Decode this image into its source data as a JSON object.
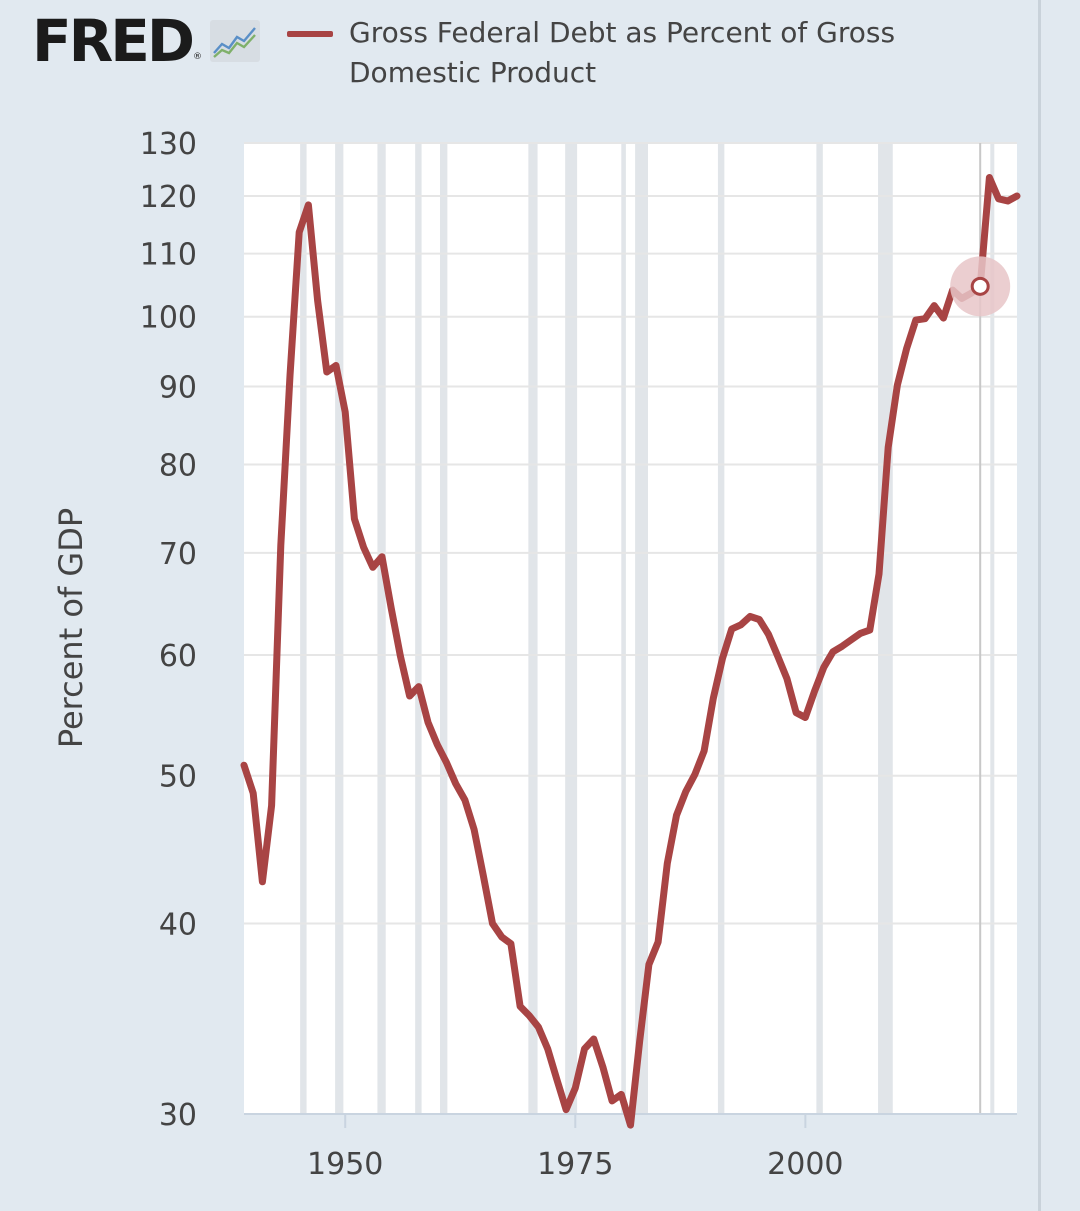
{
  "header": {
    "logo_text": "FRED",
    "logo_mark": "®",
    "logo_icon": "line-chart-icon"
  },
  "colors": {
    "series": "#a84444",
    "background": "#e1e9f0",
    "plot_background": "#ffffff",
    "recession_band": "#e1e5e9",
    "gridline": "#e6e6e6",
    "axis": "#c9d4e0",
    "highlight_halo": "#e8c5c8"
  },
  "chart_data": {
    "type": "line",
    "title": "",
    "xlabel": "",
    "ylabel": "Percent of GDP",
    "yscale": "log",
    "ylim": [
      30,
      130
    ],
    "xlim": [
      1939,
      2023
    ],
    "grid": true,
    "legend": "top",
    "yticks": [
      30,
      40,
      50,
      60,
      70,
      80,
      90,
      100,
      110,
      120,
      130
    ],
    "xticks": [
      1950,
      1975,
      2000
    ],
    "series": [
      {
        "name": "Gross Federal Debt as Percent of Gross Domestic Product",
        "x": [
          1939,
          1940,
          1941,
          1942,
          1943,
          1944,
          1945,
          1946,
          1947,
          1948,
          1949,
          1950,
          1951,
          1952,
          1953,
          1954,
          1955,
          1956,
          1957,
          1958,
          1959,
          1960,
          1961,
          1962,
          1963,
          1964,
          1965,
          1966,
          1967,
          1968,
          1969,
          1970,
          1971,
          1972,
          1973,
          1974,
          1975,
          1976,
          1977,
          1978,
          1979,
          1980,
          1981,
          1982,
          1983,
          1984,
          1985,
          1986,
          1987,
          1988,
          1989,
          1990,
          1991,
          1992,
          1993,
          1994,
          1995,
          1996,
          1997,
          1998,
          1999,
          2000,
          2001,
          2002,
          2003,
          2004,
          2005,
          2006,
          2007,
          2008,
          2009,
          2010,
          2011,
          2012,
          2013,
          2014,
          2015,
          2016,
          2017,
          2018,
          2019,
          2020,
          2021,
          2022,
          2023
        ],
        "y": [
          50.8,
          48.7,
          42.6,
          47.8,
          70.8,
          91.5,
          113.6,
          118.4,
          102.5,
          92.0,
          92.9,
          86.6,
          73.7,
          70.6,
          68.5,
          69.6,
          64.4,
          59.9,
          56.4,
          57.2,
          54.2,
          52.4,
          51.0,
          49.4,
          48.2,
          46.1,
          43.0,
          40.0,
          39.2,
          38.8,
          35.3,
          34.8,
          34.2,
          33.1,
          31.6,
          30.2,
          31.2,
          33.1,
          33.6,
          32.2,
          30.6,
          30.9,
          29.5,
          33.5,
          37.6,
          38.9,
          43.8,
          47.1,
          48.8,
          50.1,
          51.9,
          56.2,
          59.7,
          62.4,
          62.8,
          63.6,
          63.3,
          61.9,
          59.9,
          57.9,
          55.0,
          54.6,
          56.8,
          58.9,
          60.3,
          60.8,
          61.4,
          62.0,
          62.3,
          67.8,
          82.1,
          90.2,
          95.3,
          99.5,
          99.7,
          101.7,
          99.8,
          104.1,
          102.8,
          103.6,
          104.7,
          123.4,
          119.5,
          119.1,
          120.0
        ],
        "highlight": {
          "x": 2019,
          "y": 104.7
        }
      }
    ],
    "recessions": [
      [
        1945.1,
        1945.8
      ],
      [
        1948.9,
        1949.8
      ],
      [
        1953.5,
        1954.4
      ],
      [
        1957.6,
        1958.3
      ],
      [
        1960.3,
        1961.1
      ],
      [
        1969.9,
        1970.9
      ],
      [
        1973.9,
        1975.2
      ],
      [
        1980.0,
        1980.5
      ],
      [
        1981.5,
        1982.9
      ],
      [
        1990.5,
        1991.2
      ],
      [
        2001.2,
        2001.9
      ],
      [
        2007.9,
        2009.5
      ],
      [
        2020.1,
        2020.4
      ]
    ],
    "reference_line_x": 2019
  }
}
